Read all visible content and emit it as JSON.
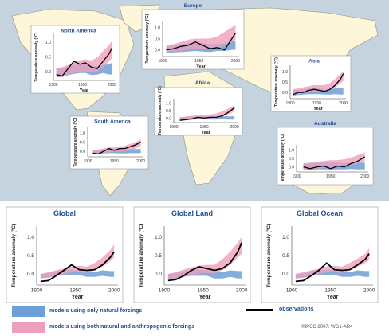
{
  "chart_data": [
    {
      "id": "north-america",
      "type": "line",
      "title": "North America",
      "xlabel": "Year",
      "ylabel": "Temperature anomaly (°C)",
      "xticks": [
        1900,
        1950,
        2000
      ],
      "yticks": [
        0.0,
        0.5,
        1.0
      ],
      "xlim": [
        1900,
        2005
      ],
      "ylim": [
        -0.3,
        1.3
      ],
      "x": [
        1905,
        1915,
        1925,
        1935,
        1945,
        1955,
        1965,
        1975,
        1985,
        1995,
        2000
      ],
      "series": [
        {
          "name": "observations",
          "values": [
            -0.1,
            -0.15,
            0.1,
            0.35,
            0.25,
            0.3,
            0.15,
            0.1,
            0.35,
            0.6,
            0.8
          ]
        },
        {
          "name": "models using only natural forcings",
          "lower": [
            -0.2,
            -0.18,
            -0.12,
            -0.08,
            -0.05,
            -0.05,
            -0.12,
            -0.1,
            -0.05,
            -0.1,
            -0.1
          ],
          "upper": [
            0.1,
            0.13,
            0.18,
            0.22,
            0.25,
            0.25,
            0.18,
            0.2,
            0.22,
            0.25,
            0.3
          ]
        },
        {
          "name": "models using both natural and anthropogenic forcings",
          "lower": [
            -0.2,
            -0.18,
            -0.1,
            -0.05,
            0.0,
            0.0,
            -0.05,
            0.0,
            0.15,
            0.35,
            0.45
          ],
          "upper": [
            0.1,
            0.15,
            0.22,
            0.32,
            0.38,
            0.42,
            0.38,
            0.48,
            0.7,
            0.9,
            1.05
          ]
        }
      ]
    },
    {
      "id": "europe",
      "type": "line",
      "title": "Europe",
      "xlabel": "Year",
      "ylabel": "Temperature anomaly (°C)",
      "xticks": [
        1900,
        1950,
        2000
      ],
      "yticks": [
        0.0,
        0.5,
        1.0
      ],
      "xlim": [
        1900,
        2005
      ],
      "ylim": [
        -0.3,
        1.3
      ],
      "x": [
        1905,
        1915,
        1925,
        1935,
        1945,
        1955,
        1965,
        1975,
        1985,
        1995,
        2000
      ],
      "series": [
        {
          "name": "observations",
          "values": [
            0.0,
            0.05,
            0.15,
            0.2,
            0.35,
            0.2,
            0.05,
            0.1,
            0.0,
            0.5,
            0.75
          ]
        },
        {
          "name": "models using only natural forcings",
          "lower": [
            -0.15,
            -0.12,
            -0.1,
            -0.08,
            -0.05,
            -0.08,
            -0.1,
            -0.05,
            -0.05,
            0.0,
            0.0
          ],
          "upper": [
            0.15,
            0.2,
            0.25,
            0.3,
            0.35,
            0.3,
            0.25,
            0.25,
            0.3,
            0.4,
            0.4
          ]
        },
        {
          "name": "models using both natural and anthropogenic forcings",
          "lower": [
            -0.1,
            -0.08,
            -0.05,
            0.0,
            0.05,
            0.05,
            0.05,
            0.1,
            0.2,
            0.35,
            0.45
          ],
          "upper": [
            0.2,
            0.25,
            0.35,
            0.45,
            0.5,
            0.5,
            0.5,
            0.6,
            0.8,
            1.0,
            1.1
          ]
        }
      ]
    },
    {
      "id": "asia",
      "type": "line",
      "title": "Asia",
      "xlabel": "Year",
      "ylabel": "Temperature anomaly (°C)",
      "xticks": [
        1900,
        1950,
        2000
      ],
      "yticks": [
        0.0,
        0.5,
        1.0
      ],
      "xlim": [
        1900,
        2005
      ],
      "ylim": [
        -0.3,
        1.3
      ],
      "x": [
        1905,
        1915,
        1925,
        1935,
        1945,
        1955,
        1965,
        1975,
        1985,
        1995,
        2000
      ],
      "series": [
        {
          "name": "observations",
          "values": [
            -0.1,
            0.0,
            0.0,
            0.1,
            0.15,
            0.1,
            0.05,
            0.15,
            0.35,
            0.65,
            0.9
          ]
        },
        {
          "name": "models using only natural forcings",
          "lower": [
            -0.15,
            -0.12,
            -0.1,
            -0.08,
            -0.08,
            -0.08,
            -0.1,
            -0.1,
            -0.08,
            -0.1,
            -0.1
          ],
          "upper": [
            0.1,
            0.12,
            0.15,
            0.18,
            0.2,
            0.2,
            0.15,
            0.15,
            0.2,
            0.2,
            0.2
          ]
        },
        {
          "name": "models using both natural and anthropogenic forcings",
          "lower": [
            -0.1,
            -0.08,
            -0.05,
            0.0,
            0.05,
            0.05,
            0.05,
            0.1,
            0.25,
            0.45,
            0.55
          ],
          "upper": [
            0.15,
            0.2,
            0.25,
            0.3,
            0.35,
            0.35,
            0.35,
            0.45,
            0.65,
            0.9,
            1.0
          ]
        }
      ]
    },
    {
      "id": "africa",
      "type": "line",
      "title": "Africa",
      "xlabel": "Year",
      "ylabel": "Temperature anomaly (°C)",
      "xticks": [
        1900,
        1950,
        2000
      ],
      "yticks": [
        0.0,
        0.5,
        1.0
      ],
      "xlim": [
        1900,
        2005
      ],
      "ylim": [
        -0.3,
        1.3
      ],
      "x": [
        1910,
        1920,
        1930,
        1940,
        1950,
        1960,
        1970,
        1980,
        1990,
        2000
      ],
      "series": [
        {
          "name": "observations",
          "values": [
            -0.15,
            -0.1,
            -0.05,
            0.05,
            0.0,
            0.05,
            0.05,
            0.15,
            0.4,
            0.7
          ]
        },
        {
          "name": "models using only natural forcings",
          "lower": [
            -0.15,
            -0.12,
            -0.1,
            -0.08,
            -0.08,
            -0.1,
            -0.1,
            -0.08,
            -0.1,
            -0.1
          ],
          "upper": [
            0.05,
            0.08,
            0.1,
            0.12,
            0.12,
            0.1,
            0.1,
            0.12,
            0.12,
            0.12
          ]
        },
        {
          "name": "models using both natural and anthropogenic forcings",
          "lower": [
            -0.15,
            -0.12,
            -0.08,
            -0.05,
            -0.02,
            0.0,
            0.0,
            0.1,
            0.25,
            0.45
          ],
          "upper": [
            0.05,
            0.1,
            0.15,
            0.2,
            0.22,
            0.25,
            0.3,
            0.45,
            0.65,
            0.85
          ]
        }
      ]
    },
    {
      "id": "south-america",
      "type": "line",
      "title": "South America",
      "xlabel": "",
      "ylabel": "Temperature anomaly (°C)",
      "xticks": [
        1900,
        1950,
        2000
      ],
      "yticks": [
        0.0,
        0.5,
        1.0
      ],
      "xlim": [
        1900,
        2005
      ],
      "ylim": [
        -0.3,
        1.3
      ],
      "x": [
        1910,
        1920,
        1930,
        1940,
        1950,
        1960,
        1970,
        1980,
        1990,
        2000
      ],
      "series": [
        {
          "name": "observations",
          "values": [
            -0.1,
            -0.15,
            0.0,
            0.15,
            0.05,
            0.15,
            0.15,
            0.25,
            0.35,
            0.5
          ]
        },
        {
          "name": "models using only natural forcings",
          "lower": [
            -0.15,
            -0.15,
            -0.12,
            -0.1,
            -0.1,
            -0.12,
            -0.12,
            -0.1,
            -0.1,
            -0.1
          ],
          "upper": [
            0.05,
            0.08,
            0.1,
            0.12,
            0.12,
            0.1,
            0.1,
            0.12,
            0.12,
            0.12
          ]
        },
        {
          "name": "models using both natural and anthropogenic forcings",
          "lower": [
            -0.15,
            -0.12,
            -0.1,
            -0.05,
            -0.02,
            0.0,
            0.0,
            0.05,
            0.15,
            0.3
          ],
          "upper": [
            0.05,
            0.1,
            0.15,
            0.2,
            0.22,
            0.25,
            0.3,
            0.4,
            0.5,
            0.65
          ]
        }
      ]
    },
    {
      "id": "australia",
      "type": "line",
      "title": "Australia",
      "xlabel": "",
      "ylabel": "Temperature anomaly (°C)",
      "xticks": [
        1900,
        1950,
        2000
      ],
      "yticks": [
        0.0,
        0.5,
        1.0
      ],
      "xlim": [
        1900,
        2005
      ],
      "ylim": [
        -0.3,
        1.3
      ],
      "x": [
        1910,
        1920,
        1930,
        1940,
        1950,
        1960,
        1970,
        1980,
        1990,
        2000
      ],
      "series": [
        {
          "name": "observations",
          "values": [
            0.0,
            -0.1,
            0.0,
            0.05,
            -0.1,
            0.05,
            0.0,
            0.2,
            0.35,
            0.6
          ]
        },
        {
          "name": "models using only natural forcings",
          "lower": [
            -0.2,
            -0.2,
            -0.15,
            -0.15,
            -0.15,
            -0.15,
            -0.15,
            -0.12,
            -0.15,
            -0.15
          ],
          "upper": [
            0.2,
            0.2,
            0.25,
            0.25,
            0.25,
            0.25,
            0.22,
            0.25,
            0.25,
            0.25
          ]
        },
        {
          "name": "models using both natural and anthropogenic forcings",
          "lower": [
            -0.2,
            -0.15,
            -0.1,
            -0.05,
            -0.05,
            0.0,
            0.0,
            0.1,
            0.2,
            0.35
          ],
          "upper": [
            0.2,
            0.25,
            0.3,
            0.35,
            0.4,
            0.4,
            0.45,
            0.55,
            0.7,
            0.85
          ]
        }
      ]
    },
    {
      "id": "global",
      "type": "line",
      "title": "Global",
      "xlabel": "Year",
      "ylabel": "Temperature anomaly (°C)",
      "xticks": [
        1900,
        1950,
        2000
      ],
      "yticks": [
        0.0,
        0.5,
        1.0
      ],
      "xlim": [
        1900,
        2005
      ],
      "ylim": [
        -0.3,
        1.3
      ],
      "x": [
        1905,
        1915,
        1925,
        1935,
        1945,
        1955,
        1965,
        1975,
        1985,
        1995,
        2000
      ],
      "series": [
        {
          "name": "observations",
          "values": [
            -0.2,
            -0.18,
            -0.05,
            0.1,
            0.25,
            0.12,
            0.1,
            0.12,
            0.25,
            0.45,
            0.6
          ]
        },
        {
          "name": "models using only natural forcings",
          "lower": [
            -0.12,
            -0.1,
            -0.05,
            -0.03,
            -0.02,
            -0.03,
            -0.08,
            -0.08,
            -0.05,
            -0.08,
            -0.08
          ],
          "upper": [
            0.0,
            0.02,
            0.08,
            0.12,
            0.12,
            0.1,
            0.05,
            0.05,
            0.1,
            0.08,
            0.08
          ]
        },
        {
          "name": "models using both natural and anthropogenic forcings",
          "lower": [
            -0.12,
            -0.1,
            -0.05,
            0.0,
            0.05,
            0.05,
            0.03,
            0.1,
            0.2,
            0.35,
            0.45
          ],
          "upper": [
            0.0,
            0.05,
            0.1,
            0.15,
            0.2,
            0.22,
            0.2,
            0.3,
            0.45,
            0.65,
            0.8
          ]
        }
      ]
    },
    {
      "id": "global-land",
      "type": "line",
      "title": "Global Land",
      "xlabel": "Year",
      "ylabel": "Temperature anomaly (°C)",
      "xticks": [
        1900,
        1950,
        2000
      ],
      "yticks": [
        0.0,
        0.5,
        1.0
      ],
      "xlim": [
        1900,
        2005
      ],
      "ylim": [
        -0.3,
        1.3
      ],
      "x": [
        1905,
        1915,
        1925,
        1935,
        1945,
        1955,
        1965,
        1975,
        1985,
        1995,
        2000
      ],
      "series": [
        {
          "name": "observations",
          "values": [
            -0.18,
            -0.15,
            -0.05,
            0.1,
            0.2,
            0.15,
            0.1,
            0.15,
            0.3,
            0.6,
            0.85
          ]
        },
        {
          "name": "models using only natural forcings",
          "lower": [
            -0.15,
            -0.12,
            -0.08,
            -0.05,
            -0.05,
            -0.05,
            -0.12,
            -0.12,
            -0.08,
            -0.12,
            -0.12
          ],
          "upper": [
            0.0,
            0.03,
            0.08,
            0.12,
            0.12,
            0.1,
            0.05,
            0.05,
            0.1,
            0.08,
            0.08
          ]
        },
        {
          "name": "models using both natural and anthropogenic forcings",
          "lower": [
            -0.15,
            -0.12,
            -0.08,
            -0.02,
            0.02,
            0.03,
            0.02,
            0.1,
            0.25,
            0.45,
            0.55
          ],
          "upper": [
            0.0,
            0.05,
            0.12,
            0.18,
            0.22,
            0.25,
            0.25,
            0.4,
            0.6,
            0.85,
            1.0
          ]
        }
      ]
    },
    {
      "id": "global-ocean",
      "type": "line",
      "title": "Global Ocean",
      "xlabel": "Year",
      "ylabel": "Temperature anomaly (°C)",
      "xticks": [
        1900,
        1950,
        2000
      ],
      "yticks": [
        0.0,
        0.5,
        1.0
      ],
      "xlim": [
        1900,
        2005
      ],
      "ylim": [
        -0.3,
        1.3
      ],
      "x": [
        1905,
        1915,
        1925,
        1935,
        1945,
        1955,
        1965,
        1975,
        1985,
        1995,
        2000
      ],
      "series": [
        {
          "name": "observations",
          "values": [
            -0.2,
            -0.18,
            -0.05,
            0.1,
            0.3,
            0.12,
            0.1,
            0.12,
            0.25,
            0.4,
            0.55
          ]
        },
        {
          "name": "models using only natural forcings",
          "lower": [
            -0.12,
            -0.1,
            -0.05,
            -0.03,
            -0.02,
            -0.03,
            -0.08,
            -0.08,
            -0.05,
            -0.08,
            -0.08
          ],
          "upper": [
            0.0,
            0.02,
            0.08,
            0.12,
            0.12,
            0.1,
            0.05,
            0.05,
            0.1,
            0.08,
            0.08
          ]
        },
        {
          "name": "models using both natural and anthropogenic forcings",
          "lower": [
            -0.12,
            -0.1,
            -0.05,
            0.0,
            0.05,
            0.05,
            0.03,
            0.1,
            0.2,
            0.3,
            0.38
          ],
          "upper": [
            0.0,
            0.05,
            0.1,
            0.15,
            0.2,
            0.22,
            0.2,
            0.3,
            0.42,
            0.55,
            0.7
          ]
        }
      ]
    }
  ],
  "legend": {
    "natural": "models using only natural forcings",
    "both": "models using both natural and anthropogenic forcings",
    "observations": "observations"
  },
  "credit": "©IPCC 2007: WG1-AR4",
  "colors": {
    "ocean": "#c4d3de",
    "land": "#fdf6d8",
    "natural": "#6f9fd8",
    "both": "#ee9fbd",
    "observations": "#000000",
    "text": "#1f4e8f"
  }
}
